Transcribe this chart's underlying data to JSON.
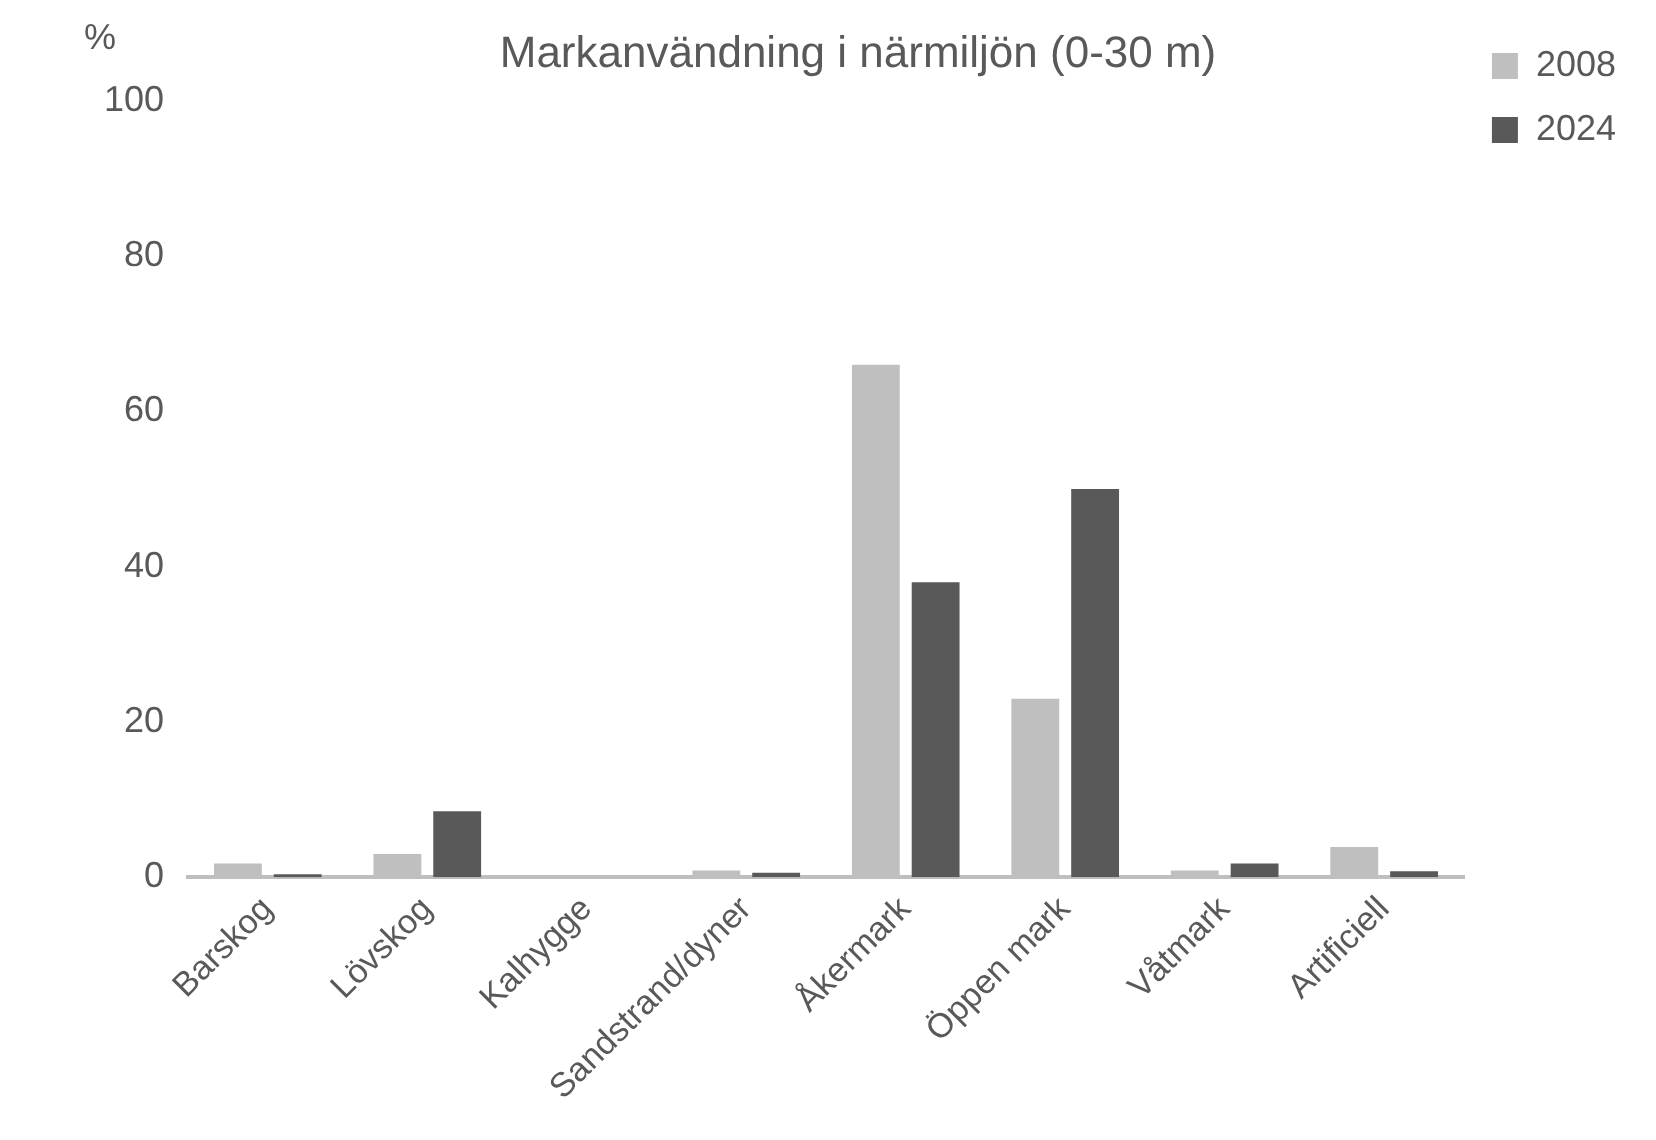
{
  "chart_data": {
    "type": "bar",
    "title": "Markanvändning i närmiljön (0-30 m)",
    "ylabel": "%",
    "categories": [
      "Barskog",
      "Lövskog",
      "Kalhygge",
      "Sandstrand/dyner",
      "Åkermark",
      "Öppen mark",
      "Våtmark",
      "Artificiell"
    ],
    "series": [
      {
        "name": "2008",
        "color": "#bfbfbf",
        "values": [
          1.8,
          3,
          0,
          0.9,
          66,
          23,
          0.9,
          3.9
        ]
      },
      {
        "name": "2024",
        "color": "#595959",
        "values": [
          0.4,
          8.5,
          0,
          0.6,
          38,
          50,
          1.8,
          0.8
        ]
      }
    ],
    "ylim": [
      0,
      100
    ],
    "yticks": [
      0,
      20,
      40,
      60,
      80,
      100
    ],
    "grid": false,
    "legend": "top right"
  }
}
